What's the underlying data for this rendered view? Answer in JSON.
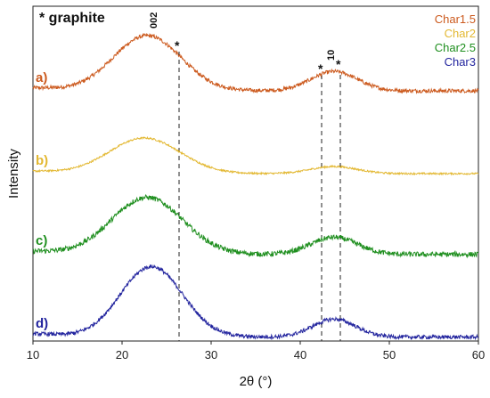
{
  "chart_data": {
    "type": "line",
    "title": "",
    "xlabel": "2θ (°)",
    "ylabel": "Intensity",
    "xlim": [
      10,
      60
    ],
    "xticks": [
      10,
      20,
      30,
      40,
      50,
      60
    ],
    "yticks_visible": false,
    "grid": false,
    "legend_position": "top-right",
    "annotations": {
      "header": "* graphite",
      "peak_002": "002",
      "peak_10": "10",
      "star": "*",
      "reference_lines_x": [
        26.4,
        42.4,
        44.5
      ]
    },
    "series": [
      {
        "name": "Char1.5",
        "panel_label": "a)",
        "color": "#cc5a1e",
        "broad_peak": {
          "center": 22.8,
          "amplitude": 1.0,
          "width": 3.8
        },
        "peak_10": {
          "center": 43.8,
          "amplitude": 0.35,
          "width": 2.6
        },
        "baseline": 0.0,
        "noise": 0.035
      },
      {
        "name": "Char2",
        "panel_label": "b)",
        "color": "#e3b832",
        "broad_peak": {
          "center": 22.5,
          "amplitude": 0.8,
          "width": 4.0
        },
        "peak_10": {
          "center": 43.8,
          "amplitude": 0.16,
          "width": 2.6
        },
        "baseline": 0.0,
        "noise": 0.02
      },
      {
        "name": "Char2.5",
        "panel_label": "c)",
        "color": "#1f8f1f",
        "broad_peak": {
          "center": 22.8,
          "amplitude": 1.0,
          "width": 4.0
        },
        "peak_10": {
          "center": 43.8,
          "amplitude": 0.3,
          "width": 2.6
        },
        "baseline": 0.02,
        "noise": 0.045
      },
      {
        "name": "Char3",
        "panel_label": "d)",
        "color": "#22249e",
        "broad_peak": {
          "center": 23.3,
          "amplitude": 1.1,
          "width": 3.5
        },
        "peak_10": {
          "center": 43.8,
          "amplitude": 0.28,
          "width": 2.4
        },
        "baseline": 0.02,
        "noise": 0.03
      }
    ]
  }
}
